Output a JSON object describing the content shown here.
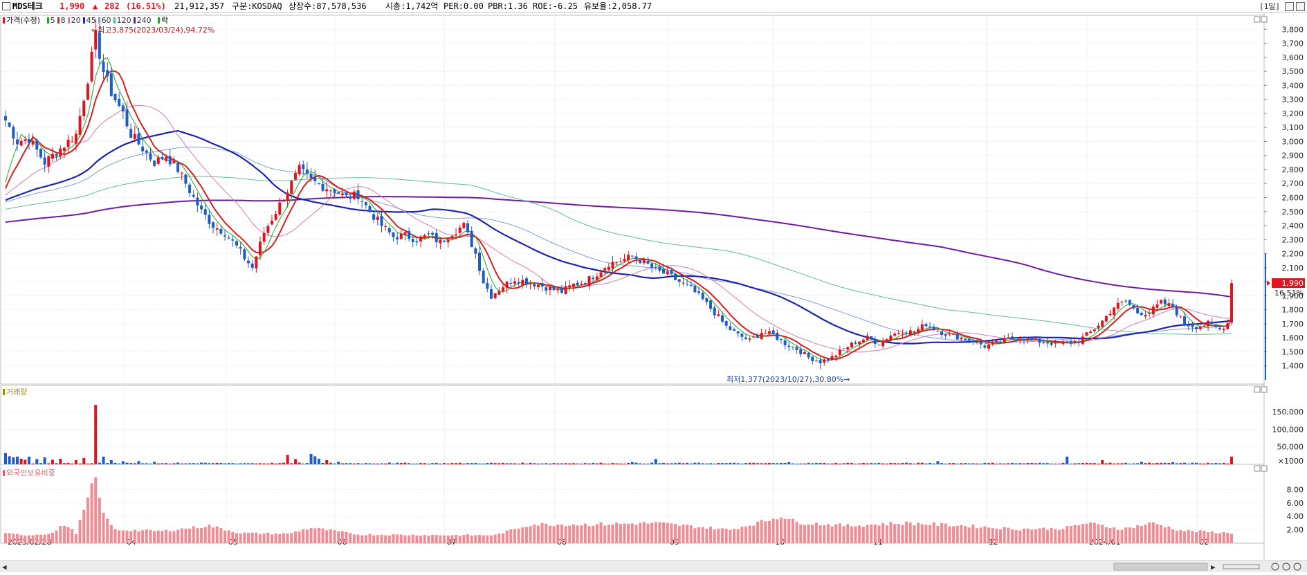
{
  "header": {
    "name": "MDS테크",
    "price": "1,990",
    "change_arrow": "▲",
    "change": "282",
    "change_pct": "(16.51%)",
    "volume": "21,912,357",
    "market": "구분:KOSDAQ",
    "shares": "상장수:87,578,536",
    "mcap": "시총:1,742억",
    "per": "PER:0.00",
    "pbr": "PBR:1.36",
    "roe": "ROE:-6.25",
    "float": "유보율:2,058.77",
    "period": "[1일]"
  },
  "colors": {
    "up": "#e0141e",
    "down": "#1e5cc8",
    "ma5": "#21a821",
    "ma8": "#d81e1e",
    "ma20": "#d77bb0",
    "ma45": "#1b22b5",
    "ma60": "#7f9fd4",
    "ma120": "#5fbf8f",
    "ma240": "#6e1aa6",
    "foreign": "#f08c94"
  },
  "legend": {
    "price_label": "가격(수정)",
    "ma": [
      {
        "label": "5",
        "color": "#21a821"
      },
      {
        "label": "8",
        "color": "#d81e1e"
      },
      {
        "label": "20",
        "color": "#d77bb0"
      },
      {
        "label": "45",
        "color": "#1b22b5"
      },
      {
        "label": "60",
        "color": "#7f9fd4"
      },
      {
        "label": "120",
        "color": "#5fbf8f"
      },
      {
        "label": "240",
        "color": "#6e1aa6"
      }
    ],
    "extra": "락",
    "volume_label": "거래량",
    "foreign_label": "외국인보유비중"
  },
  "annotations": {
    "high": "←최고3,875(2023/03/24),94.72%",
    "low": "최저1,377(2023/10/27),30.80%→"
  },
  "price_badge": {
    "price": "1,990",
    "pct": "16.51%"
  },
  "chart_data": [
    {
      "type": "candlestick",
      "panel": "price",
      "ylim": [
        1300,
        3900
      ],
      "y_ticks": [
        1400,
        1500,
        1600,
        1700,
        1800,
        1900,
        2000,
        2100,
        2200,
        2300,
        2400,
        2500,
        2600,
        2700,
        2800,
        2900,
        3000,
        3100,
        3200,
        3300,
        3400,
        3500,
        3600,
        3700,
        3800
      ],
      "x_tick_labels": [
        {
          "label": "2023/02/28",
          "t": 0
        },
        {
          "label": "04",
          "t": 0.097
        },
        {
          "label": "05",
          "t": 0.18
        },
        {
          "label": "06",
          "t": 0.269
        },
        {
          "label": "07",
          "t": 0.358
        },
        {
          "label": "08",
          "t": 0.448
        },
        {
          "label": "09",
          "t": 0.54
        },
        {
          "label": "10",
          "t": 0.626
        },
        {
          "label": "11",
          "t": 0.706
        },
        {
          "label": "12",
          "t": 0.8
        },
        {
          "label": "2024/01",
          "t": 0.882
        },
        {
          "label": "02",
          "t": 0.972
        }
      ],
      "anchors": [
        [
          0,
          3150
        ],
        [
          3,
          3000
        ],
        [
          6,
          3020
        ],
        [
          10,
          2850
        ],
        [
          14,
          2950
        ],
        [
          18,
          3050
        ],
        [
          21,
          3450
        ],
        [
          23,
          3750
        ],
        [
          25,
          3500
        ],
        [
          27,
          3350
        ],
        [
          30,
          3200
        ],
        [
          32,
          3050
        ],
        [
          35,
          2950
        ],
        [
          38,
          2850
        ],
        [
          41,
          2900
        ],
        [
          44,
          2800
        ],
        [
          47,
          2650
        ],
        [
          50,
          2500
        ],
        [
          53,
          2400
        ],
        [
          56,
          2350
        ],
        [
          59,
          2250
        ],
        [
          61,
          2170
        ],
        [
          63,
          2100
        ],
        [
          66,
          2350
        ],
        [
          69,
          2500
        ],
        [
          72,
          2650
        ],
        [
          75,
          2800
        ],
        [
          78,
          2720
        ],
        [
          81,
          2680
        ],
        [
          84,
          2650
        ],
        [
          87,
          2600
        ],
        [
          90,
          2620
        ],
        [
          93,
          2500
        ],
        [
          96,
          2400
        ],
        [
          99,
          2320
        ],
        [
          102,
          2330
        ],
        [
          105,
          2300
        ],
        [
          108,
          2330
        ],
        [
          111,
          2280
        ],
        [
          114,
          2350
        ],
        [
          117,
          2400
        ],
        [
          120,
          2200
        ],
        [
          122,
          2000
        ],
        [
          124,
          1900
        ],
        [
          127,
          1970
        ],
        [
          130,
          2020
        ],
        [
          133,
          2000
        ],
        [
          136,
          1980
        ],
        [
          139,
          1950
        ],
        [
          142,
          1930
        ],
        [
          145,
          1980
        ],
        [
          148,
          2000
        ],
        [
          151,
          2060
        ],
        [
          154,
          2130
        ],
        [
          157,
          2150
        ],
        [
          160,
          2180
        ],
        [
          163,
          2140
        ],
        [
          166,
          2080
        ],
        [
          169,
          2050
        ],
        [
          172,
          2000
        ],
        [
          175,
          1950
        ],
        [
          178,
          1870
        ],
        [
          181,
          1780
        ],
        [
          184,
          1680
        ],
        [
          187,
          1620
        ],
        [
          190,
          1580
        ],
        [
          193,
          1640
        ],
        [
          196,
          1620
        ],
        [
          199,
          1560
        ],
        [
          202,
          1520
        ],
        [
          205,
          1460
        ],
        [
          208,
          1430
        ],
        [
          211,
          1460
        ],
        [
          214,
          1520
        ],
        [
          217,
          1570
        ],
        [
          220,
          1600
        ],
        [
          223,
          1560
        ],
        [
          226,
          1620
        ],
        [
          229,
          1650
        ],
        [
          232,
          1640
        ],
        [
          235,
          1700
        ],
        [
          238,
          1650
        ],
        [
          241,
          1620
        ],
        [
          244,
          1600
        ],
        [
          247,
          1580
        ],
        [
          250,
          1540
        ],
        [
          253,
          1560
        ],
        [
          256,
          1590
        ],
        [
          259,
          1600
        ],
        [
          262,
          1580
        ],
        [
          265,
          1570
        ],
        [
          268,
          1560
        ],
        [
          271,
          1560
        ],
        [
          274,
          1580
        ],
        [
          277,
          1640
        ],
        [
          280,
          1720
        ],
        [
          283,
          1820
        ],
        [
          286,
          1860
        ],
        [
          289,
          1780
        ],
        [
          292,
          1780
        ],
        [
          295,
          1850
        ],
        [
          298,
          1820
        ],
        [
          301,
          1700
        ],
        [
          304,
          1680
        ],
        [
          307,
          1700
        ],
        [
          310,
          1660
        ],
        [
          312,
          1705
        ],
        [
          313,
          1990
        ]
      ],
      "last": {
        "close": 1990,
        "change": 282,
        "change_pct": 16.51
      },
      "high_marker": {
        "value": 3875,
        "date": "2023/03/24"
      },
      "low_marker": {
        "value": 1377,
        "date": "2023/10/27"
      }
    },
    {
      "type": "bar",
      "panel": "volume",
      "name": "거래량",
      "unit": "×1000",
      "ylim": [
        0,
        190000
      ],
      "y_ticks": [
        50000,
        100000,
        150000
      ],
      "spikes": [
        [
          0,
          32000
        ],
        [
          1,
          23000
        ],
        [
          2,
          20000
        ],
        [
          3,
          22000
        ],
        [
          4,
          16000
        ],
        [
          5,
          13000
        ],
        [
          6,
          22000
        ],
        [
          8,
          15000
        ],
        [
          10,
          20000
        ],
        [
          12,
          13000
        ],
        [
          14,
          16000
        ],
        [
          18,
          12000
        ],
        [
          20,
          18000
        ],
        [
          23,
          170000
        ],
        [
          25,
          22000
        ],
        [
          27,
          12000
        ],
        [
          30,
          9000
        ],
        [
          34,
          9000
        ],
        [
          38,
          7000
        ],
        [
          44,
          5000
        ],
        [
          55,
          4000
        ],
        [
          72,
          27000
        ],
        [
          74,
          15000
        ],
        [
          78,
          30000
        ],
        [
          79,
          23000
        ],
        [
          80,
          16000
        ],
        [
          82,
          12000
        ],
        [
          85,
          7000
        ],
        [
          98,
          5000
        ],
        [
          120,
          4000
        ],
        [
          160,
          6000
        ],
        [
          166,
          15000
        ],
        [
          200,
          6000
        ],
        [
          238,
          9000
        ],
        [
          271,
          22000
        ],
        [
          298,
          6000
        ],
        [
          280,
          12000
        ],
        [
          290,
          7000
        ],
        [
          313,
          22000
        ]
      ],
      "baseline": 3000
    },
    {
      "type": "bar",
      "panel": "foreign",
      "name": "외국인보유비중",
      "ylim": [
        0,
        10
      ],
      "y_ticks": [
        2,
        4,
        6,
        8
      ],
      "anchors": [
        [
          0,
          1.4
        ],
        [
          6,
          1.2
        ],
        [
          12,
          1.5
        ],
        [
          15,
          2.8
        ],
        [
          18,
          1.5
        ],
        [
          23,
          9.8
        ],
        [
          24,
          6.4
        ],
        [
          26,
          3.4
        ],
        [
          28,
          2.0
        ],
        [
          40,
          1.8
        ],
        [
          52,
          2.6
        ],
        [
          60,
          1.5
        ],
        [
          72,
          1.4
        ],
        [
          78,
          2.3
        ],
        [
          90,
          1.3
        ],
        [
          110,
          1.2
        ],
        [
          125,
          1.2
        ],
        [
          134,
          2.8
        ],
        [
          150,
          2.8
        ],
        [
          166,
          3.0
        ],
        [
          185,
          2.0
        ],
        [
          195,
          3.5
        ],
        [
          198,
          4.1
        ],
        [
          202,
          3.1
        ],
        [
          215,
          2.6
        ],
        [
          230,
          3.0
        ],
        [
          245,
          2.6
        ],
        [
          258,
          2.1
        ],
        [
          270,
          2.2
        ],
        [
          276,
          3.0
        ],
        [
          285,
          2.1
        ],
        [
          293,
          3.0
        ],
        [
          300,
          1.9
        ],
        [
          313,
          1.5
        ]
      ]
    }
  ]
}
